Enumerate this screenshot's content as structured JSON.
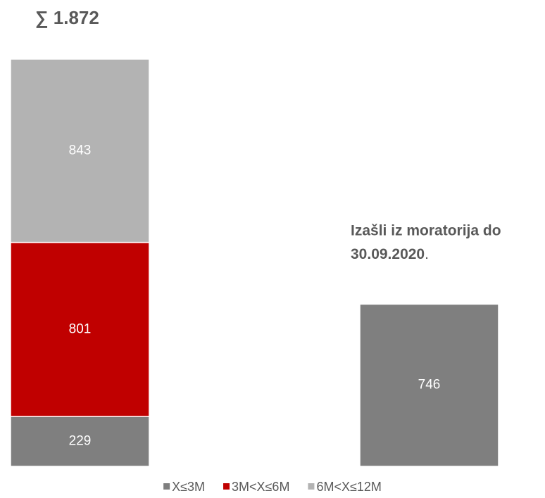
{
  "chart_data": {
    "type": "stacked-bar",
    "total_label": "∑ 1.872",
    "annotation": {
      "lines": [
        "Izašli iz moratorija do",
        "30.09.2020"
      ],
      "end": "."
    },
    "categories": [
      null,
      null
    ],
    "series": [
      {
        "name": "X≤3M",
        "color": "#7f7f7f",
        "values": [
          229,
          746
        ]
      },
      {
        "name": "3M<X≤6M",
        "color": "#c00000",
        "values": [
          801,
          null
        ]
      },
      {
        "name": "6M<X≤12M",
        "color": "#b3b3b3",
        "values": [
          843,
          null
        ]
      }
    ],
    "legend": "bottom"
  }
}
